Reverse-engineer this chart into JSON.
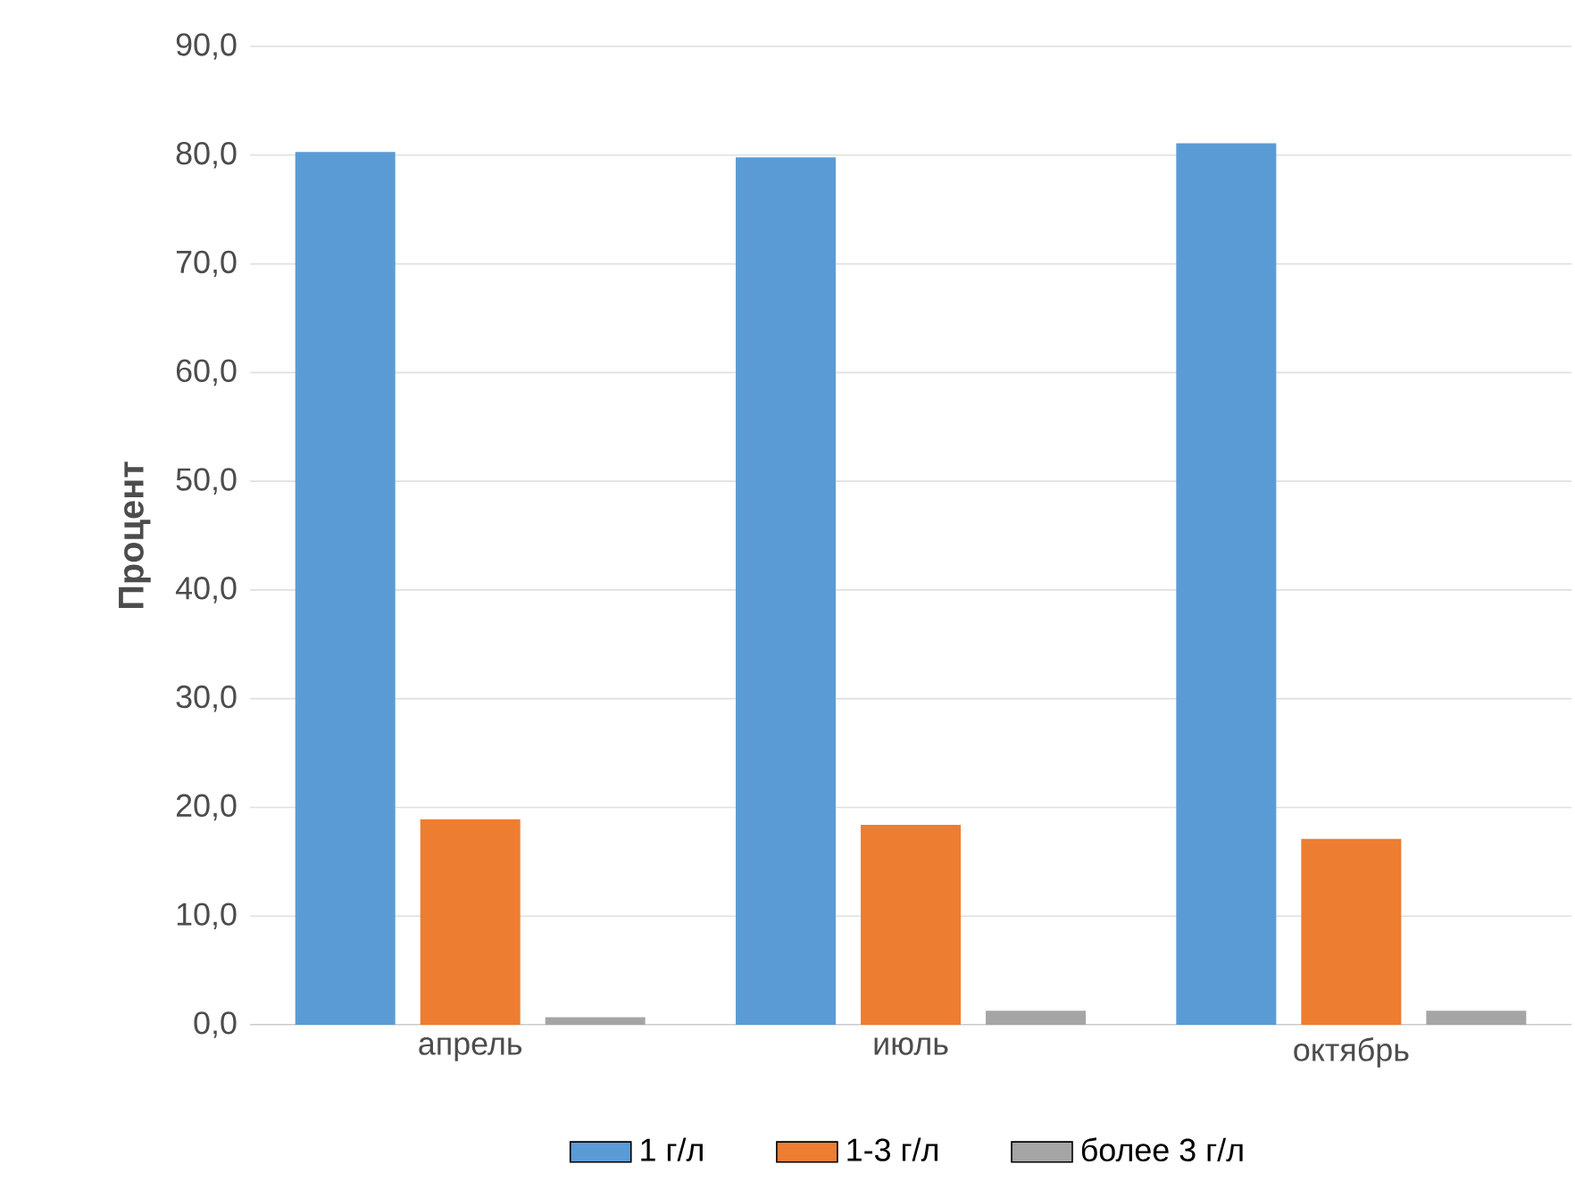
{
  "chart_data": {
    "type": "bar",
    "ylabel": "Процент",
    "categories": [
      "апрель",
      "июль",
      "октябрь"
    ],
    "series": [
      {
        "name": "1 г/л",
        "color": "#5b9bd5",
        "values": [
          80.3,
          79.8,
          81.1
        ]
      },
      {
        "name": "1-3 г/л",
        "color": "#ed7d31",
        "values": [
          18.9,
          18.4,
          17.1
        ]
      },
      {
        "name": "более 3 г/л",
        "color": "#a5a5a5",
        "values": [
          0.7,
          1.3,
          1.3
        ]
      }
    ],
    "ylim": [
      0,
      90
    ],
    "yticks": [
      {
        "value": 0,
        "label": "0,0"
      },
      {
        "value": 10,
        "label": "10,0"
      },
      {
        "value": 20,
        "label": "20,0"
      },
      {
        "value": 30,
        "label": "30,0"
      },
      {
        "value": 40,
        "label": "40,0"
      },
      {
        "value": 50,
        "label": "50,0"
      },
      {
        "value": 60,
        "label": "60,0"
      },
      {
        "value": 70,
        "label": "70,0"
      },
      {
        "value": 80,
        "label": "80,0"
      },
      {
        "value": 90,
        "label": "90,0"
      }
    ],
    "grid": "y",
    "legend": "bottom"
  }
}
